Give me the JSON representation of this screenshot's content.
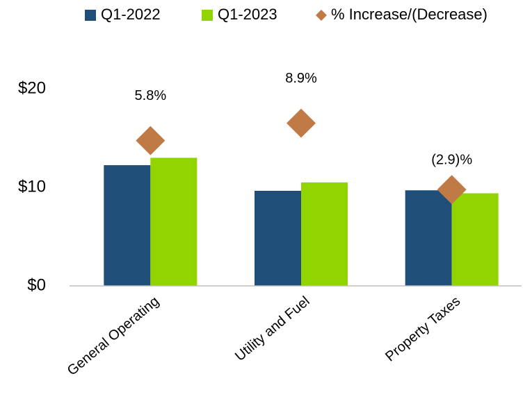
{
  "chart_data": {
    "type": "bar",
    "categories": [
      "General Operating",
      "Utility and Fuel",
      "Property Taxes"
    ],
    "series": [
      {
        "name": "Q1-2022",
        "color": "#1f4e79",
        "values": [
          12.25,
          9.65,
          9.7
        ]
      },
      {
        "name": "Q1-2023",
        "color": "#92d400",
        "values": [
          13.0,
          10.5,
          9.4
        ]
      },
      {
        "name": "% Increase/(Decrease)",
        "color": "#c07a45",
        "type": "scatter",
        "axis": "y2",
        "marker": "diamond",
        "values": [
          5.8,
          8.9,
          -2.9
        ],
        "value_labels": [
          "5.8%",
          "8.9%",
          "(2.9)%"
        ]
      }
    ],
    "ylim": [
      0,
      20
    ],
    "yticks": [
      {
        "value": 0,
        "label": "$0"
      },
      {
        "value": 10,
        "label": "$10"
      },
      {
        "value": 20,
        "label": "$20"
      }
    ],
    "y2lim": [
      -20,
      15
    ],
    "grid": false,
    "legend": "top"
  }
}
